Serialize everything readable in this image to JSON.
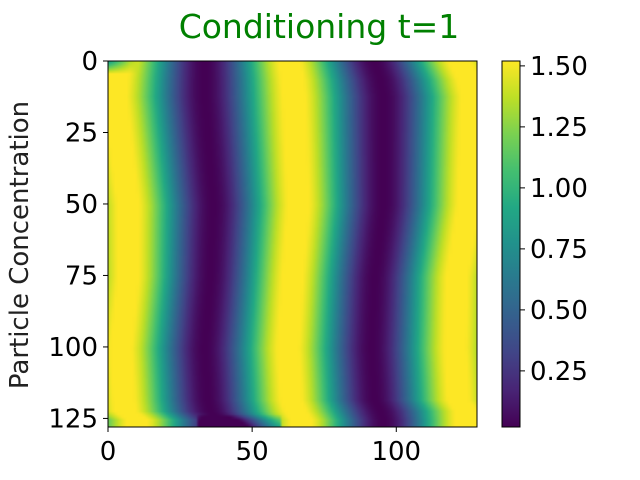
{
  "chart_data": {
    "type": "heatmap",
    "title": "Conditioning t=1",
    "title_color": "#008000",
    "ylabel": "Particle Concentration",
    "xlabel": "",
    "xlim": [
      0,
      128
    ],
    "ylim": [
      128,
      0
    ],
    "x_ticks": [
      0,
      50,
      100
    ],
    "y_ticks": [
      0,
      25,
      50,
      75,
      100,
      125
    ],
    "x_tick_labels": [
      "0",
      "50",
      "100"
    ],
    "y_tick_labels": [
      "0",
      "25",
      "50",
      "75",
      "100",
      "125"
    ],
    "colormap": "viridis",
    "color_range": [
      0.02,
      1.52
    ],
    "colorbar_ticks": [
      0.25,
      0.5,
      0.75,
      1.0,
      1.25,
      1.5
    ],
    "colorbar_tick_labels": [
      "0.25",
      "0.50",
      "0.75",
      "1.00",
      "1.25",
      "1.50"
    ],
    "grid": false,
    "rows": [
      0,
      3,
      6,
      12,
      25,
      50,
      75,
      100,
      118,
      122,
      125,
      127
    ],
    "minima_columns": [
      [
        33,
        92
      ],
      [
        33,
        93
      ],
      [
        33,
        94
      ],
      [
        33,
        95
      ],
      [
        34,
        95
      ],
      [
        36,
        95
      ],
      [
        35,
        92
      ],
      [
        33,
        91
      ],
      [
        34,
        92
      ],
      [
        35,
        94
      ],
      [
        38,
        95
      ],
      [
        38,
        95
      ]
    ]
  }
}
